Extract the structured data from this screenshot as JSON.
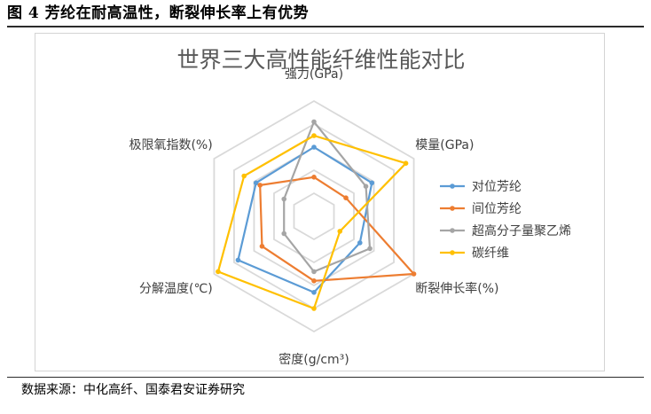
{
  "figure": {
    "title": "图 4 芳纶在耐高温性，断裂伸长率上有优势",
    "source": "数据来源：中化高纤、国泰君安证券研究"
  },
  "chart_data": {
    "type": "radar",
    "title": "世界三大高性能纤维性能对比",
    "axes": [
      "强力(GPa)",
      "模量(GPa)",
      "断裂伸长率(%)",
      "密度(g/cm³)",
      "分解温度(℃)",
      "极限氧指数(%)"
    ],
    "rlim": [
      0,
      5
    ],
    "grid": true,
    "grid_rings": 5,
    "legend": "right",
    "series": [
      {
        "name": "对位芳纶",
        "color": "#5b9bd5",
        "values": [
          3.0,
          2.9,
          2.3,
          3.3,
          3.8,
          2.9
        ]
      },
      {
        "name": "间位芳纶",
        "color": "#ed7d31",
        "values": [
          1.7,
          1.6,
          5.0,
          2.8,
          2.6,
          2.7
        ]
      },
      {
        "name": "超高分子量聚乙烯",
        "color": "#a5a5a5",
        "values": [
          4.1,
          2.6,
          2.8,
          2.4,
          1.5,
          1.5
        ]
      },
      {
        "name": "碳纤维",
        "color": "#ffc000",
        "values": [
          3.5,
          4.6,
          1.3,
          4.0,
          4.8,
          3.5
        ]
      }
    ]
  }
}
